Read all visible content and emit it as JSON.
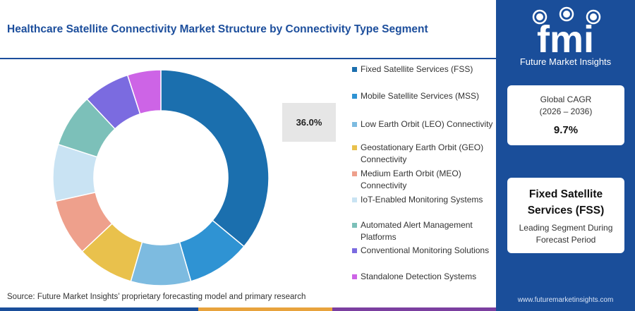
{
  "title": "Healthcare Satellite Connectivity Market Structure by Connectivity Type Segment",
  "source": "Source: Future Market Insights’ proprietary forecasting model and primary research",
  "callout_value": "36.0%",
  "colors": {
    "title": "#1c4e9c",
    "side_panel": "#1a4e9a",
    "bottom_bar": [
      "#1a4e9a",
      "#e8a33d",
      "#7b3fa0"
    ]
  },
  "brand": {
    "logo_text": "fmi",
    "tagline": "Future Market Insights",
    "website": "www.futuremarketinsights.com"
  },
  "cagr": {
    "label": "Global CAGR",
    "period": "(2026 – 2036)",
    "value": "9.7%"
  },
  "leading": {
    "name": "Fixed Satellite Services (FSS)",
    "subtitle": "Leading Segment During Forecast Period"
  },
  "chart_data": {
    "type": "pie",
    "donut": true,
    "labels": [
      "Fixed Satellite Services (FSS)",
      "Mobile Satellite Services (MSS)",
      "Low Earth Orbit (LEO) Connectivity",
      "Geostationary Earth Orbit (GEO) Connectivity",
      "Medium Earth Orbit (MEO) Connectivity",
      "IoT-Enabled Monitoring Systems",
      "Automated Alert Management Platforms",
      "Conventional Monitoring Solutions",
      "Standalone Detection Systems"
    ],
    "values": [
      36.0,
      9.5,
      9.0,
      8.5,
      8.5,
      8.5,
      8.0,
      7.0,
      5.0
    ],
    "colors": [
      "#1b6fae",
      "#2f93d3",
      "#7dbbe0",
      "#e9c14c",
      "#eea08c",
      "#c9e3f3",
      "#7cc0b9",
      "#7b6be0",
      "#cd64e6"
    ],
    "legend_position": "right"
  }
}
